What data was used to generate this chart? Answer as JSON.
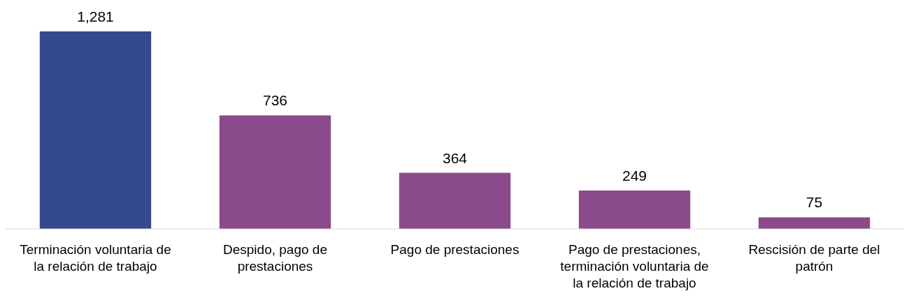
{
  "chart_data": {
    "type": "bar",
    "categories": [
      "Terminación voluntaria de la relación de trabajo",
      "Despido, pago de prestaciones",
      "Pago de prestaciones",
      "Pago de prestaciones, terminación voluntaria de la relación de trabajo",
      "Rescisión de parte del patrón"
    ],
    "values": [
      1281,
      736,
      364,
      249,
      75
    ],
    "colors": [
      "#354a8c",
      "#8b4a8b",
      "#8b4a8b",
      "#8b4a8b",
      "#8b4a8b"
    ],
    "value_labels": [
      "1,281",
      "736",
      "364",
      "249",
      "75"
    ]
  }
}
